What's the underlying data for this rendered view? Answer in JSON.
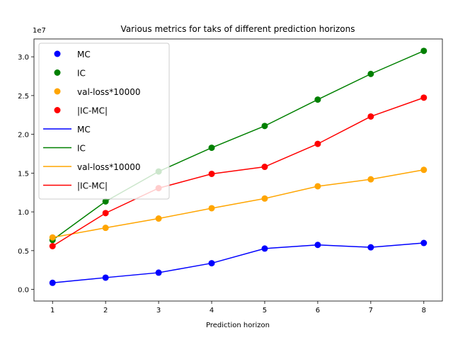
{
  "chart_data": {
    "type": "line",
    "title": "Various metrics for taks of different prediction horizons",
    "xlabel": "Prediction horizon",
    "ylabel": "",
    "y_offset_text": "1e7",
    "x": [
      1,
      2,
      3,
      4,
      5,
      6,
      7,
      8
    ],
    "xlim": [
      0.65,
      8.35
    ],
    "ylim": [
      -1500000.0,
      32300000.0
    ],
    "x_ticks": [
      1,
      2,
      3,
      4,
      5,
      6,
      7,
      8
    ],
    "y_ticks": [
      0,
      5000000,
      10000000,
      15000000,
      20000000,
      25000000,
      30000000
    ],
    "y_tick_labels": [
      "0.0",
      "0.5",
      "1.0",
      "1.5",
      "2.0",
      "2.5",
      "3.0"
    ],
    "series": [
      {
        "name": "MC",
        "color": "#0000ff",
        "values": [
          850000,
          1520000,
          2160000,
          3380000,
          5270000,
          5740000,
          5430000,
          5990000
        ]
      },
      {
        "name": "IC",
        "color": "#008000",
        "values": [
          6370000,
          11350000,
          15210000,
          18270000,
          21080000,
          24480000,
          27790000,
          30760000
        ]
      },
      {
        "name": "val-loss*10000",
        "color": "#ffa500",
        "values": [
          6700000,
          7940000,
          9140000,
          10470000,
          11720000,
          13300000,
          14200000,
          15420000
        ]
      },
      {
        "name": "|IC-MC|",
        "color": "#ff0000",
        "values": [
          5580000,
          9840000,
          13060000,
          14900000,
          15810000,
          18770000,
          22300000,
          24730000
        ]
      }
    ],
    "legend": {
      "placement": "upper-left",
      "entries": [
        {
          "label": "MC",
          "kind": "marker",
          "color": "#0000ff"
        },
        {
          "label": "IC",
          "kind": "marker",
          "color": "#008000"
        },
        {
          "label": "val-loss*10000",
          "kind": "marker",
          "color": "#ffa500"
        },
        {
          "label": "|IC-MC|",
          "kind": "marker",
          "color": "#ff0000"
        },
        {
          "label": "MC",
          "kind": "line",
          "color": "#0000ff"
        },
        {
          "label": "IC",
          "kind": "line",
          "color": "#008000"
        },
        {
          "label": "val-loss*10000",
          "kind": "line",
          "color": "#ffa500"
        },
        {
          "label": "|IC-MC|",
          "kind": "line",
          "color": "#ff0000"
        }
      ]
    },
    "grid": false
  }
}
